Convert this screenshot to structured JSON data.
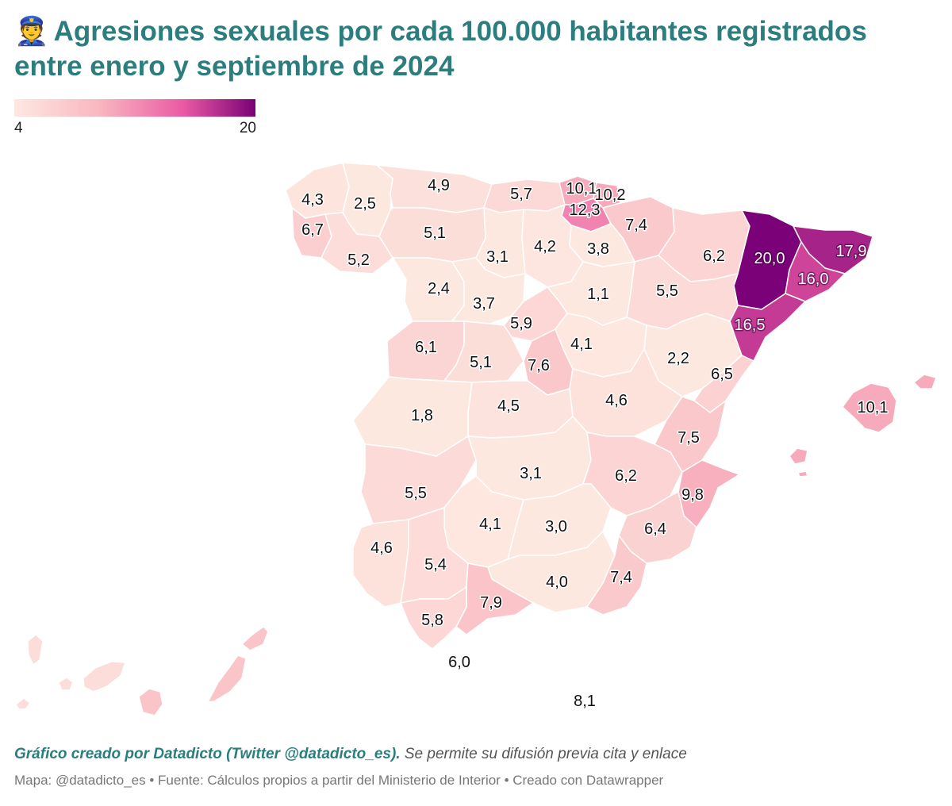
{
  "header": {
    "emoji": "👮",
    "title": "Agresiones sexuales por cada 100.000 habitantes registrados entre enero y septiembre de 2024"
  },
  "legend": {
    "min_label": "4",
    "max_label": "20",
    "min": 4,
    "max": 20,
    "colors": [
      "#fde8e0",
      "#f9b7c0",
      "#ea5aa4",
      "#7a0177"
    ]
  },
  "map_values": {
    "a_coruna": "4,3",
    "lugo": "2,5",
    "asturias": "4,9",
    "cantabria": "5,7",
    "bizkaia": "10,1",
    "gipuzkoa": "10,2",
    "araba": "12,3",
    "navarra": "7,4",
    "pontevedra": "6,7",
    "ourense": "5,2",
    "leon": "5,1",
    "palencia": "3,1",
    "burgos": "4,2",
    "la_rioja": "3,8",
    "huesca": "6,2",
    "lleida": "20,0",
    "girona": "17,9",
    "barcelona": "16,0",
    "tarragona": "16,5",
    "zamora": "2,4",
    "valladolid": "3,7",
    "soria": "1,1",
    "zaragoza": "5,5",
    "segovia": "5,9",
    "salamanca": "6,1",
    "avila": "5,1",
    "madrid": "7,6",
    "guadalajara": "4,1",
    "teruel": "2,2",
    "castellon": "6,5",
    "caceres": "1,8",
    "toledo": "4,5",
    "cuenca": "4,6",
    "valencia": "7,5",
    "baleares": "10,1",
    "badajoz": "5,5",
    "ciudad_real": "3,1",
    "albacete": "6,2",
    "alicante": "9,8",
    "cordoba": "4,1",
    "jaen": "3,0",
    "murcia": "6,4",
    "huelva": "4,6",
    "sevilla": "5,4",
    "granada": "4,0",
    "almeria": "7,4",
    "malaga": "7,9",
    "cadiz": "5,8",
    "ceuta": "6,0",
    "melilla": "8,1"
  },
  "footer": {
    "credit_strong": "Gráfico creado por Datadicto (Twitter @datadicto_es).",
    "credit_rest": " Se permite su difusión previa cita y enlace",
    "source": "Mapa: @datadicto_es • Fuente: Cálculos propios a partir del Ministerio de Interior • Creado con Datawrapper"
  }
}
